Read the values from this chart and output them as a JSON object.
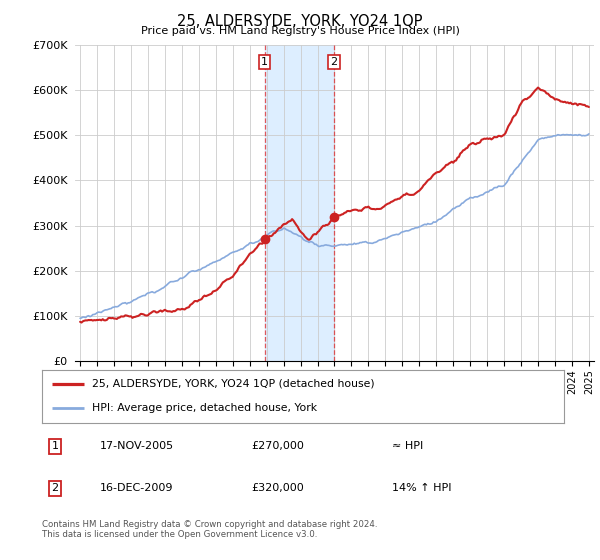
{
  "title": "25, ALDERSYDE, YORK, YO24 1QP",
  "subtitle": "Price paid vs. HM Land Registry's House Price Index (HPI)",
  "ylabel_ticks": [
    "£0",
    "£100K",
    "£200K",
    "£300K",
    "£400K",
    "£500K",
    "£600K",
    "£700K"
  ],
  "ytick_values": [
    0,
    100000,
    200000,
    300000,
    400000,
    500000,
    600000,
    700000
  ],
  "ylim": [
    0,
    700000
  ],
  "transactions": [
    {
      "date_num": 2005.88,
      "price": 270000,
      "label": "1"
    },
    {
      "date_num": 2009.96,
      "price": 320000,
      "label": "2"
    }
  ],
  "shade_regions": [
    [
      2005.88,
      2009.96
    ]
  ],
  "shade_color": "#ddeeff",
  "legend_entries": [
    {
      "label": "25, ALDERSYDE, YORK, YO24 1QP (detached house)",
      "color": "#cc2222",
      "lw": 1.5
    },
    {
      "label": "HPI: Average price, detached house, York",
      "color": "#88aadd",
      "lw": 1.2
    }
  ],
  "table_rows": [
    {
      "num": "1",
      "date": "17-NOV-2005",
      "price": "£270,000",
      "rel": "≈ HPI"
    },
    {
      "num": "2",
      "date": "16-DEC-2009",
      "price": "£320,000",
      "rel": "14% ↑ HPI"
    }
  ],
  "footer": "Contains HM Land Registry data © Crown copyright and database right 2024.\nThis data is licensed under the Open Government Licence v3.0.",
  "background_color": "#ffffff",
  "plot_bg_color": "#ffffff",
  "grid_color": "#cccccc",
  "xlim": [
    1994.7,
    2025.3
  ]
}
